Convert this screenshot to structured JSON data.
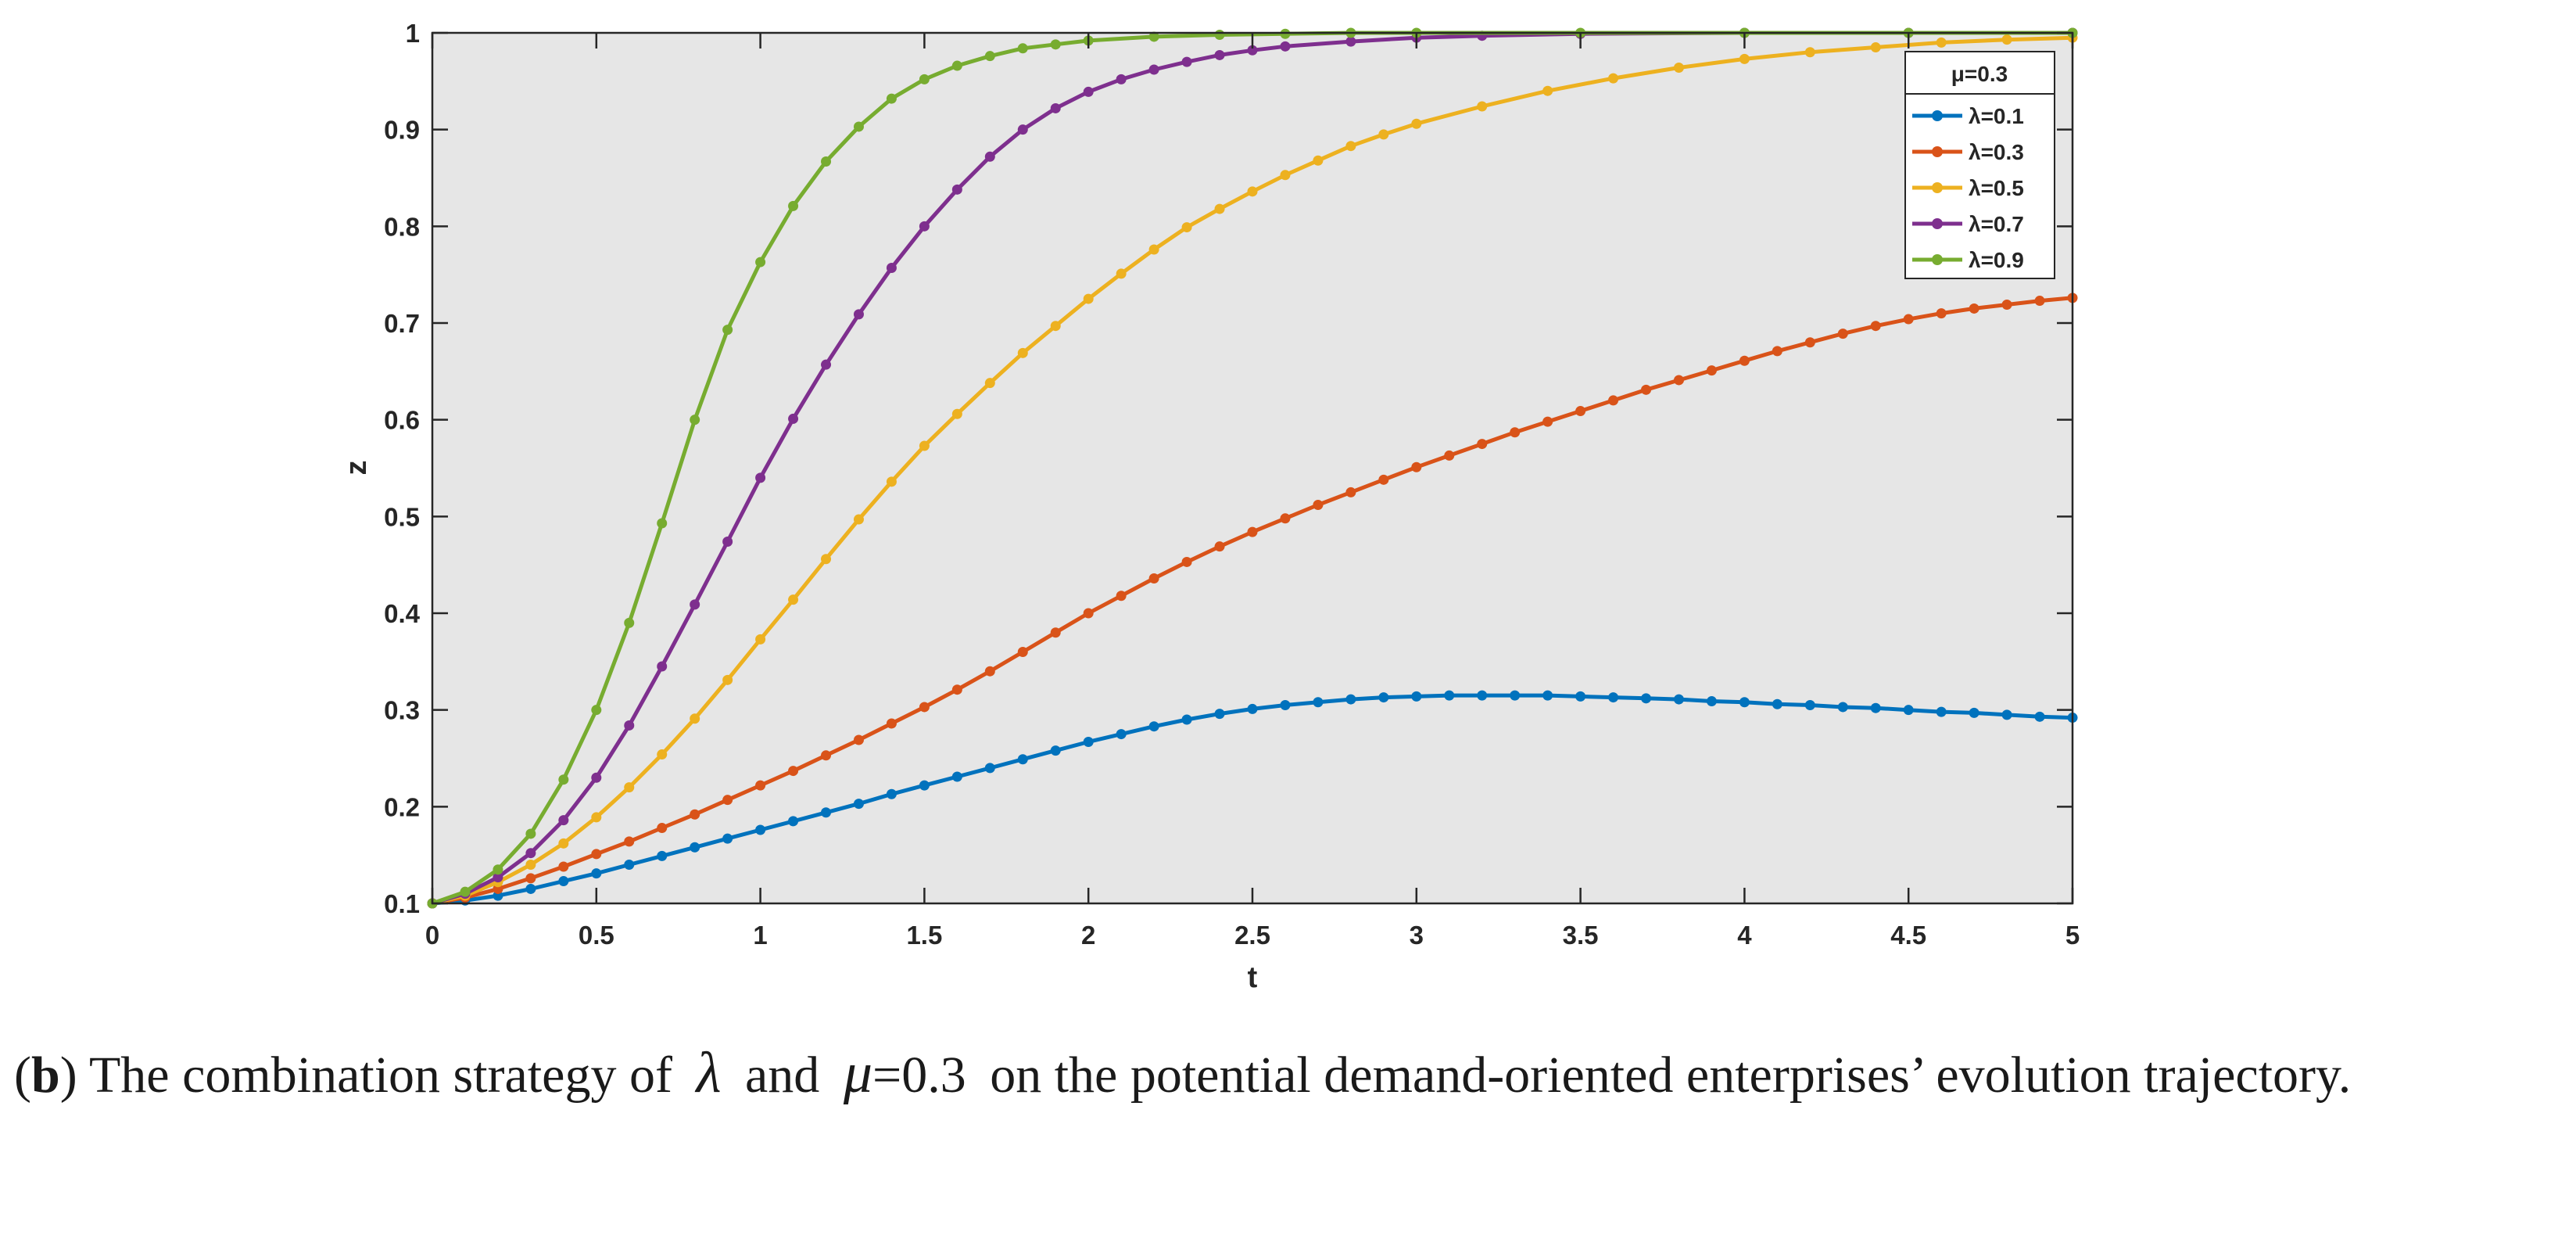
{
  "chart_data": {
    "type": "line",
    "title": "",
    "xlabel": "t",
    "ylabel": "z",
    "xlim": [
      0,
      5
    ],
    "ylim": [
      0.1,
      1
    ],
    "xticks": [
      0,
      0.5,
      1,
      1.5,
      2,
      2.5,
      3,
      3.5,
      4,
      4.5,
      5
    ],
    "xtick_labels": [
      "0",
      "0.5",
      "1",
      "1.5",
      "2",
      "2.5",
      "3",
      "3.5",
      "4",
      "4.5",
      "5"
    ],
    "yticks": [
      0.1,
      0.2,
      0.3,
      0.4,
      0.5,
      0.6,
      0.7,
      0.8,
      0.9,
      1
    ],
    "ytick_labels": [
      "0.1",
      "0.2",
      "0.3",
      "0.4",
      "0.5",
      "0.6",
      "0.7",
      "0.8",
      "0.9",
      "1"
    ],
    "grid": false,
    "plot_background": "#e6e6e6",
    "legend": {
      "title": "μ=0.3",
      "position": "top-right"
    },
    "series": [
      {
        "name": "λ=0.1",
        "color": "#0072bd",
        "x": [
          0,
          0.1,
          0.2,
          0.3,
          0.4,
          0.5,
          0.6,
          0.7,
          0.8,
          0.9,
          1,
          1.1,
          1.2,
          1.3,
          1.4,
          1.5,
          1.6,
          1.7,
          1.8,
          1.9,
          2,
          2.1,
          2.2,
          2.3,
          2.4,
          2.5,
          2.6,
          2.7,
          2.8,
          2.9,
          3,
          3.1,
          3.2,
          3.3,
          3.4,
          3.5,
          3.6,
          3.7,
          3.8,
          3.9,
          4,
          4.1,
          4.2,
          4.3,
          4.4,
          4.5,
          4.6,
          4.7,
          4.8,
          4.9,
          5
        ],
        "y": [
          0.1,
          0.103,
          0.108,
          0.115,
          0.123,
          0.131,
          0.14,
          0.149,
          0.158,
          0.167,
          0.176,
          0.185,
          0.194,
          0.203,
          0.213,
          0.222,
          0.231,
          0.24,
          0.249,
          0.258,
          0.267,
          0.275,
          0.283,
          0.29,
          0.296,
          0.301,
          0.305,
          0.308,
          0.311,
          0.313,
          0.314,
          0.315,
          0.315,
          0.315,
          0.315,
          0.314,
          0.313,
          0.312,
          0.311,
          0.309,
          0.308,
          0.306,
          0.305,
          0.303,
          0.302,
          0.3,
          0.298,
          0.297,
          0.295,
          0.293,
          0.292
        ]
      },
      {
        "name": "λ=0.3",
        "color": "#d95319",
        "x": [
          0,
          0.1,
          0.2,
          0.3,
          0.4,
          0.5,
          0.6,
          0.7,
          0.8,
          0.9,
          1,
          1.1,
          1.2,
          1.3,
          1.4,
          1.5,
          1.6,
          1.7,
          1.8,
          1.9,
          2,
          2.1,
          2.2,
          2.3,
          2.4,
          2.5,
          2.6,
          2.7,
          2.8,
          2.9,
          3,
          3.1,
          3.2,
          3.3,
          3.4,
          3.5,
          3.6,
          3.7,
          3.8,
          3.9,
          4,
          4.1,
          4.2,
          4.3,
          4.4,
          4.5,
          4.6,
          4.7,
          4.8,
          4.9,
          5
        ],
        "y": [
          0.1,
          0.106,
          0.115,
          0.126,
          0.138,
          0.151,
          0.164,
          0.178,
          0.192,
          0.207,
          0.222,
          0.237,
          0.253,
          0.269,
          0.286,
          0.303,
          0.321,
          0.34,
          0.36,
          0.38,
          0.4,
          0.418,
          0.436,
          0.453,
          0.469,
          0.484,
          0.498,
          0.512,
          0.525,
          0.538,
          0.551,
          0.563,
          0.575,
          0.587,
          0.598,
          0.609,
          0.62,
          0.631,
          0.641,
          0.651,
          0.661,
          0.671,
          0.68,
          0.689,
          0.697,
          0.704,
          0.71,
          0.715,
          0.719,
          0.723,
          0.726
        ]
      },
      {
        "name": "λ=0.5",
        "color": "#edb120",
        "x": [
          0,
          0.1,
          0.2,
          0.3,
          0.4,
          0.5,
          0.6,
          0.7,
          0.8,
          0.9,
          1,
          1.1,
          1.2,
          1.3,
          1.4,
          1.5,
          1.6,
          1.7,
          1.8,
          1.9,
          2,
          2.1,
          2.2,
          2.3,
          2.4,
          2.5,
          2.6,
          2.7,
          2.8,
          2.9,
          3,
          3.2,
          3.4,
          3.6,
          3.8,
          4,
          4.2,
          4.4,
          4.6,
          4.8,
          5
        ],
        "y": [
          0.1,
          0.108,
          0.122,
          0.14,
          0.162,
          0.189,
          0.22,
          0.254,
          0.291,
          0.331,
          0.373,
          0.414,
          0.456,
          0.497,
          0.536,
          0.573,
          0.606,
          0.638,
          0.669,
          0.697,
          0.725,
          0.751,
          0.776,
          0.799,
          0.818,
          0.836,
          0.853,
          0.868,
          0.883,
          0.895,
          0.906,
          0.924,
          0.94,
          0.953,
          0.964,
          0.973,
          0.98,
          0.985,
          0.99,
          0.993,
          0.995
        ]
      },
      {
        "name": "λ=0.7",
        "color": "#7e2f8e",
        "x": [
          0,
          0.1,
          0.2,
          0.3,
          0.4,
          0.5,
          0.6,
          0.7,
          0.8,
          0.9,
          1,
          1.1,
          1.2,
          1.3,
          1.4,
          1.5,
          1.6,
          1.7,
          1.8,
          1.9,
          2,
          2.1,
          2.2,
          2.3,
          2.4,
          2.5,
          2.6,
          2.8,
          3,
          3.2,
          3.5,
          4,
          4.5,
          5
        ],
        "y": [
          0.1,
          0.11,
          0.127,
          0.152,
          0.186,
          0.23,
          0.284,
          0.345,
          0.409,
          0.474,
          0.54,
          0.601,
          0.657,
          0.709,
          0.757,
          0.8,
          0.838,
          0.872,
          0.9,
          0.922,
          0.939,
          0.952,
          0.962,
          0.97,
          0.977,
          0.982,
          0.986,
          0.991,
          0.995,
          0.997,
          0.999,
          1.0,
          1.0,
          1.0
        ]
      },
      {
        "name": "λ=0.9",
        "color": "#77ac30",
        "x": [
          0,
          0.1,
          0.2,
          0.3,
          0.4,
          0.5,
          0.6,
          0.7,
          0.8,
          0.9,
          1,
          1.1,
          1.2,
          1.3,
          1.4,
          1.5,
          1.6,
          1.7,
          1.8,
          1.9,
          2,
          2.2,
          2.4,
          2.6,
          2.8,
          3,
          3.5,
          4,
          4.5,
          5
        ],
        "y": [
          0.1,
          0.112,
          0.135,
          0.172,
          0.228,
          0.3,
          0.39,
          0.493,
          0.6,
          0.693,
          0.763,
          0.821,
          0.867,
          0.903,
          0.932,
          0.952,
          0.966,
          0.976,
          0.984,
          0.988,
          0.992,
          0.996,
          0.998,
          0.999,
          1.0,
          1.0,
          1.0,
          1.0,
          1.0,
          1.0
        ]
      }
    ]
  },
  "caption": {
    "label": "b",
    "text_before": " The combination strategy of ",
    "lambda": "λ",
    "text_and": " and ",
    "mu": "μ",
    "mu_value": "=0.3",
    "text_after": " on the potential demand-oriented enterprises’ evolution trajectory."
  }
}
